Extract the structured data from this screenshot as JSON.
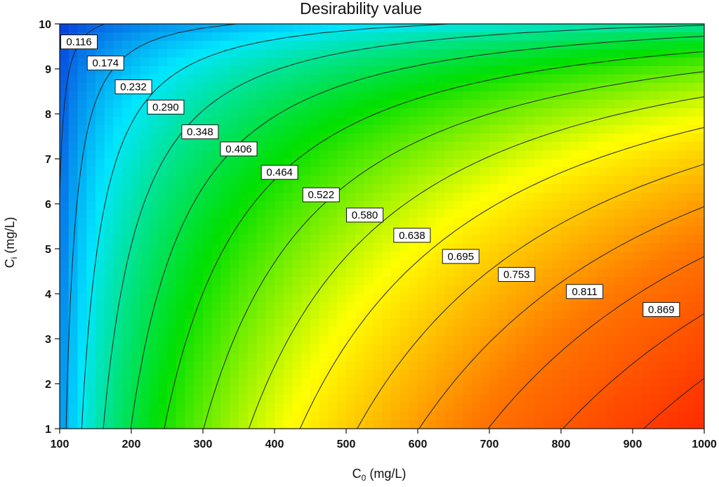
{
  "chart_data": {
    "type": "contour",
    "title": "Desirability value",
    "xlabel": {
      "main": "C",
      "sub": "0",
      "tail": " (mg/L)"
    },
    "ylabel": {
      "main": "C",
      "sub": "i",
      "tail": " (mg/L)"
    },
    "xlim": [
      100,
      1000
    ],
    "ylim": [
      1,
      10
    ],
    "xticks": [
      100,
      200,
      300,
      400,
      500,
      600,
      700,
      800,
      900,
      1000
    ],
    "yticks": [
      1,
      2,
      3,
      4,
      5,
      6,
      7,
      8,
      9,
      10
    ],
    "colormap": [
      "#0b1ad6",
      "#00e6ff",
      "#00e000",
      "#ffff00",
      "#ff7800",
      "#ff2a00"
    ],
    "levels": [
      {
        "value": "0.116",
        "label_x": 127,
        "label_y": 9.6
      },
      {
        "value": "0.174",
        "label_x": 164,
        "label_y": 9.13
      },
      {
        "value": "0.232",
        "label_x": 203,
        "label_y": 8.6
      },
      {
        "value": "0.290",
        "label_x": 248,
        "label_y": 8.15
      },
      {
        "value": "0.348",
        "label_x": 296,
        "label_y": 7.6
      },
      {
        "value": "0.406",
        "label_x": 350,
        "label_y": 7.22
      },
      {
        "value": "0.464",
        "label_x": 407,
        "label_y": 6.7
      },
      {
        "value": "0.522",
        "label_x": 465,
        "label_y": 6.2
      },
      {
        "value": "0.580",
        "label_x": 526,
        "label_y": 5.75
      },
      {
        "value": "0.638",
        "label_x": 592,
        "label_y": 5.3
      },
      {
        "value": "0.695",
        "label_x": 660,
        "label_y": 4.83
      },
      {
        "value": "0.753",
        "label_x": 738,
        "label_y": 4.43
      },
      {
        "value": "0.811",
        "label_x": 833,
        "label_y": 4.05
      },
      {
        "value": "0.869",
        "label_x": 940,
        "label_y": 3.65
      }
    ]
  }
}
